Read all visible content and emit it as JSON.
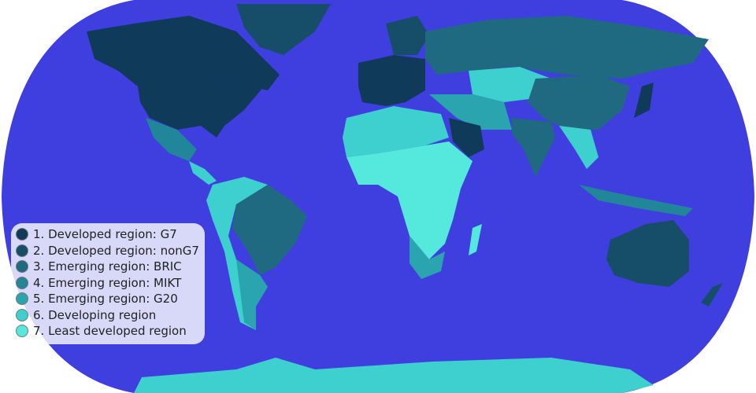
{
  "map": {
    "ocean_color": "#3f3fe0",
    "projection": "robinson"
  },
  "legend": {
    "items": [
      {
        "label": "1. Developed region: G7",
        "color": "#0f3a5a"
      },
      {
        "label": "2. Developed region: nonG7",
        "color": "#164e6a"
      },
      {
        "label": "3. Emerging region: BRIC",
        "color": "#1f6a80"
      },
      {
        "label": "4. Emerging region: MIKT",
        "color": "#22869a"
      },
      {
        "label": "5. Emerging region: G20",
        "color": "#2aa5b0"
      },
      {
        "label": "6. Developing region",
        "color": "#3ed0cf"
      },
      {
        "label": "7. Least developed region",
        "color": "#55e8dc"
      }
    ]
  }
}
